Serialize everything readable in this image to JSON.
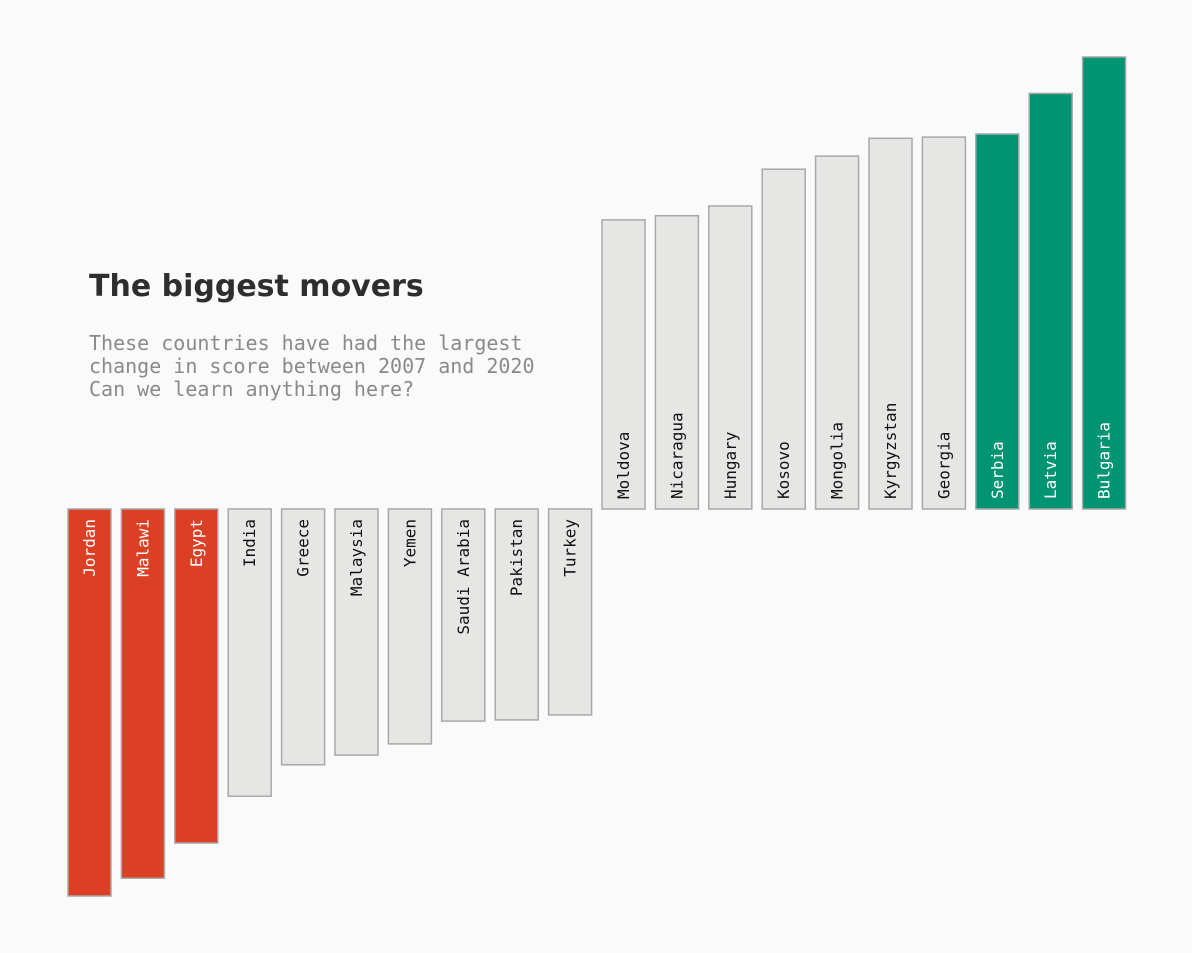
{
  "chart_data": {
    "type": "bar",
    "title": "The biggest movers",
    "subtitle_lines": [
      "These countries have had the largest",
      "change in score between 2007 and 2020",
      "Can we learn anything here?"
    ],
    "categories": [
      "Jordan",
      "Malawi",
      "Egypt",
      "India",
      "Greece",
      "Malaysia",
      "Yemen",
      "Saudi Arabia",
      "Pakistan",
      "Turkey",
      "Moldova",
      "Nicaragua",
      "Hungary",
      "Kosovo",
      "Mongolia",
      "Kyrgyzstan",
      "Georgia",
      "Serbia",
      "Latvia",
      "Bulgaria"
    ],
    "values": [
      -1.0,
      -0.954,
      -0.863,
      -0.742,
      -0.661,
      -0.636,
      -0.607,
      -0.548,
      -0.545,
      -0.532,
      0.747,
      0.758,
      0.783,
      0.878,
      0.912,
      0.958,
      0.961,
      0.969,
      1.074,
      1.168
    ],
    "highlight": [
      "negative",
      "negative",
      "negative",
      "neutral",
      "neutral",
      "neutral",
      "neutral",
      "neutral",
      "neutral",
      "neutral",
      "neutral",
      "neutral",
      "neutral",
      "neutral",
      "neutral",
      "neutral",
      "neutral",
      "positive",
      "positive",
      "positive"
    ],
    "ylim": [
      -1.0,
      1.168
    ],
    "grid": false,
    "legend": "none",
    "colors": {
      "negative": "#db4025",
      "positive": "#009473",
      "neutral": "#e6e7e5",
      "edge": "#a8a8a8",
      "label_on_color": "#ffffff",
      "label_on_neutral": "#111111"
    }
  }
}
